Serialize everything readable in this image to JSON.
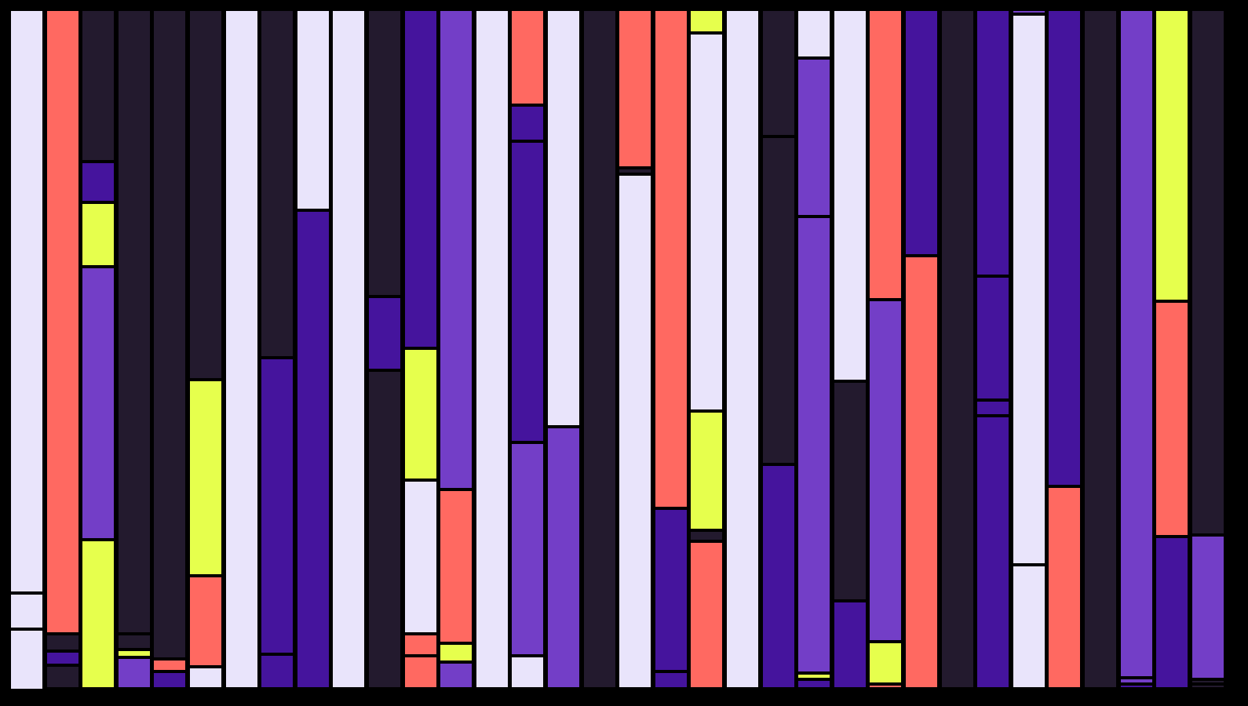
{
  "palette": {
    "dark": "#231a2e",
    "lavender": "#e9e4fb",
    "coral": "#ff6961",
    "indigo": "#45149d",
    "violet": "#733ec7",
    "lime": "#e6ff4d"
  },
  "columns": [
    {
      "segments": [
        [
          "lavender",
          744
        ],
        [
          "lavender",
          46
        ],
        [
          "lavender",
          78
        ]
      ]
    },
    {
      "segments": [
        [
          "coral",
          796
        ],
        [
          "dark",
          22
        ],
        [
          "indigo",
          18
        ],
        [
          "dark",
          30
        ]
      ]
    },
    {
      "segments": [
        [
          "dark",
          194
        ],
        [
          "indigo",
          52
        ],
        [
          "lime",
          82
        ],
        [
          "violet",
          348
        ],
        [
          "lime",
          190
        ]
      ]
    },
    {
      "segments": [
        [
          "dark",
          796
        ],
        [
          "dark",
          20
        ],
        [
          "lime",
          10
        ],
        [
          "violet",
          40
        ]
      ]
    },
    {
      "segments": [
        [
          "dark",
          828
        ],
        [
          "coral",
          16
        ],
        [
          "indigo",
          22
        ]
      ]
    },
    {
      "segments": [
        [
          "dark",
          472
        ],
        [
          "lime",
          250
        ],
        [
          "coral",
          116
        ],
        [
          "lavender",
          28
        ]
      ]
    },
    {
      "segments": [
        [
          "lavender",
          866
        ]
      ]
    },
    {
      "segments": [
        [
          "dark",
          444
        ],
        [
          "indigo",
          378
        ],
        [
          "indigo",
          44
        ]
      ]
    },
    {
      "segments": [
        [
          "lavender",
          256
        ],
        [
          "indigo",
          610
        ]
      ]
    },
    {
      "segments": [
        [
          "lavender",
          866
        ]
      ]
    },
    {
      "segments": [
        [
          "dark",
          366
        ],
        [
          "indigo",
          94
        ],
        [
          "dark",
          406
        ]
      ]
    },
    {
      "segments": [
        [
          "indigo",
          432
        ],
        [
          "lime",
          168
        ],
        [
          "lavender",
          196
        ],
        [
          "coral",
          28
        ],
        [
          "coral",
          42
        ]
      ]
    },
    {
      "segments": [
        [
          "violet",
          612
        ],
        [
          "coral",
          196
        ],
        [
          "lime",
          24
        ],
        [
          "violet",
          34
        ]
      ]
    },
    {
      "segments": [
        [
          "lavender",
          866
        ]
      ]
    },
    {
      "segments": [
        [
          "coral",
          122
        ],
        [
          "indigo",
          46
        ],
        [
          "indigo",
          384
        ],
        [
          "violet",
          272
        ],
        [
          "lavender",
          42
        ]
      ]
    },
    {
      "segments": [
        [
          "lavender",
          532
        ],
        [
          "violet",
          334
        ]
      ]
    },
    {
      "segments": [
        [
          "dark",
          866
        ]
      ]
    },
    {
      "segments": [
        [
          "coral",
          202
        ],
        [
          "dark",
          8
        ],
        [
          "lavender",
          656
        ]
      ]
    },
    {
      "segments": [
        [
          "coral",
          636
        ],
        [
          "indigo",
          208
        ],
        [
          "indigo",
          22
        ]
      ]
    },
    {
      "segments": [
        [
          "lime",
          30
        ],
        [
          "lavender",
          482
        ],
        [
          "lime",
          152
        ],
        [
          "dark",
          14
        ],
        [
          "coral",
          188
        ]
      ]
    },
    {
      "segments": [
        [
          "lavender",
          866
        ]
      ]
    },
    {
      "segments": [
        [
          "dark",
          162
        ],
        [
          "dark",
          418
        ],
        [
          "indigo",
          286
        ]
      ]
    },
    {
      "segments": [
        [
          "lavender",
          62
        ],
        [
          "violet",
          202
        ],
        [
          "violet",
          582
        ],
        [
          "lime",
          8
        ],
        [
          "indigo",
          12
        ]
      ]
    },
    {
      "segments": [
        [
          "lavender",
          474
        ],
        [
          "dark",
          280
        ],
        [
          "indigo",
          112
        ]
      ]
    },
    {
      "segments": [
        [
          "coral",
          370
        ],
        [
          "violet",
          436
        ],
        [
          "lime",
          54
        ],
        [
          "coral",
          6
        ]
      ]
    },
    {
      "segments": [
        [
          "indigo",
          314
        ],
        [
          "coral",
          552
        ]
      ]
    },
    {
      "segments": [
        [
          "dark",
          866
        ]
      ]
    },
    {
      "segments": [
        [
          "indigo",
          340
        ],
        [
          "indigo",
          158
        ],
        [
          "indigo",
          20
        ],
        [
          "indigo",
          348
        ]
      ]
    },
    {
      "segments": [
        [
          "violet",
          6
        ],
        [
          "lavender",
          702
        ],
        [
          "lavender",
          158
        ]
      ]
    },
    {
      "segments": [
        [
          "indigo",
          608
        ],
        [
          "coral",
          258
        ]
      ]
    },
    {
      "segments": [
        [
          "dark",
          866
        ]
      ]
    },
    {
      "segments": [
        [
          "violet",
          852
        ],
        [
          "violet",
          8
        ],
        [
          "indigo",
          6
        ]
      ]
    },
    {
      "segments": [
        [
          "lime",
          372
        ],
        [
          "coral",
          300
        ],
        [
          "indigo",
          194
        ]
      ]
    },
    {
      "segments": [
        [
          "dark",
          670
        ],
        [
          "violet",
          184
        ],
        [
          "dark",
          6
        ],
        [
          "dark",
          6
        ]
      ]
    }
  ]
}
